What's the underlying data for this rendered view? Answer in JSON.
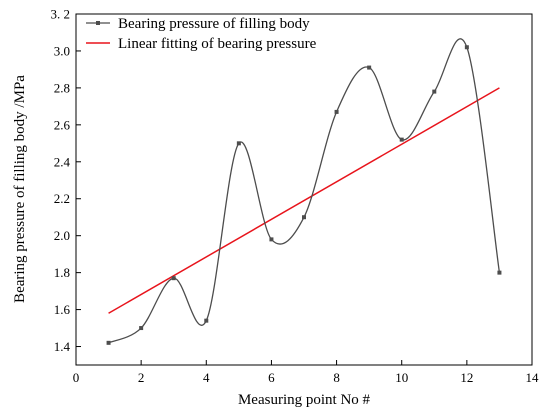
{
  "colors": {
    "data_series": "#4d4d4d",
    "fit_line": "#e8141c",
    "axes": "#000000"
  },
  "chart_data": {
    "type": "line",
    "xlabel": "Measuring point No #",
    "ylabel": "Bearing pressure of filling body /MPa",
    "xlim": [
      0,
      14
    ],
    "ylim": [
      1.3,
      3.2
    ],
    "x_ticks": [
      0,
      2,
      4,
      6,
      8,
      10,
      12,
      14
    ],
    "x_tick_labels": [
      "0",
      "2",
      "4",
      "6",
      "8",
      "10",
      "12",
      "14"
    ],
    "y_ticks": [
      1.4,
      1.6,
      1.8,
      2.0,
      2.2,
      2.4,
      2.6,
      2.8,
      3.0,
      3.2
    ],
    "y_tick_labels": [
      "1.4",
      "1.6",
      "1.8",
      "2.0",
      "2.2",
      "2.4",
      "2.6",
      "2.8",
      "3.0",
      "3. 2"
    ],
    "grid": false,
    "legend_position": "top-left",
    "series": [
      {
        "name": "Bearing pressure of filling body",
        "style": "smooth line with square markers",
        "x": [
          1,
          2,
          3,
          4,
          5,
          6,
          7,
          8,
          9,
          10,
          11,
          12,
          13
        ],
        "y": [
          1.42,
          1.5,
          1.77,
          1.54,
          2.5,
          1.98,
          2.1,
          2.67,
          2.91,
          2.52,
          2.78,
          3.02,
          1.8
        ]
      },
      {
        "name": "Linear fitting of bearing pressure",
        "style": "straight line",
        "x": [
          1,
          13
        ],
        "y": [
          1.58,
          2.8
        ]
      }
    ]
  }
}
